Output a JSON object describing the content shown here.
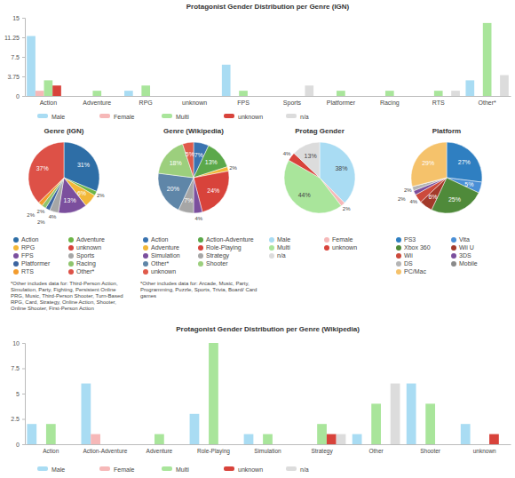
{
  "chart_data": [
    {
      "type": "bar",
      "title": "Protagonist Gender Distribution per Genre (IGN)",
      "categories": [
        "Action",
        "Adventure",
        "RPG",
        "unknown",
        "FPS",
        "Sports",
        "Platformer",
        "Racing",
        "RTS",
        "Other*"
      ],
      "series": [
        {
          "name": "Male",
          "color": "#a9dcf3",
          "values": [
            11.5,
            0,
            1,
            0,
            6,
            0,
            0,
            0,
            0,
            3
          ]
        },
        {
          "name": "Female",
          "color": "#f6b8b8",
          "values": [
            1,
            0,
            0,
            0,
            0,
            0,
            0,
            0,
            0,
            0
          ]
        },
        {
          "name": "Multi",
          "color": "#a9e59b",
          "values": [
            3,
            1,
            2,
            0,
            1,
            0,
            1,
            1,
            1,
            14
          ]
        },
        {
          "name": "unknown",
          "color": "#d8433b",
          "values": [
            2,
            0,
            0,
            0,
            0,
            0,
            0,
            0,
            0,
            0
          ]
        },
        {
          "name": "n/a",
          "color": "#dcdcdc",
          "values": [
            0,
            0,
            0,
            0,
            0,
            2,
            0,
            0,
            1,
            4
          ]
        }
      ],
      "ylim": [
        0,
        15
      ],
      "yticks": [
        0,
        3.75,
        7.5,
        11.25,
        15
      ],
      "grid": false,
      "legend": "bottom"
    },
    {
      "type": "pie",
      "title": "Genre (IGN)",
      "categories": [
        "Action",
        "Adventure",
        "RPG",
        "unknown",
        "FPS",
        "Sports",
        "Platformer",
        "Racing",
        "RTS",
        "Other*"
      ],
      "values": [
        31,
        2,
        6,
        0,
        13,
        4,
        2,
        2,
        2,
        37
      ],
      "value_labels": [
        "31%",
        "2%",
        "6%",
        null,
        "13%",
        "4%",
        "2%",
        "2%",
        "2%",
        "37%"
      ],
      "colors": [
        "#2e6ea6",
        "#6cb547",
        "#f2b738",
        "#d8433b",
        "#7b4f9d",
        "#a6a6a6",
        "#3c64a0",
        "#8fc46c",
        "#f39c2e",
        "#dd5147"
      ],
      "data_labels": true,
      "legend": "bottom",
      "annotation": "*Other includes data for: Third-Person Action, Simulation, Party, Fighting, Persistent Online PRG, Music, Third-Person Shooter, Turn-Based RPG, Card, Strategy, Online Action, Shooter, Online Shooter, First-Person Action"
    },
    {
      "type": "pie",
      "title": "Genre (Wikipedia)",
      "categories": [
        "Action",
        "Action-Adventure",
        "Adventure",
        "Role-Playing",
        "Simulation",
        "Strategy",
        "Other*",
        "Shooter",
        "unknown"
      ],
      "values": [
        7,
        13,
        2,
        24,
        4,
        7,
        20,
        18,
        5
      ],
      "value_labels": [
        "7%",
        "13%",
        "2%",
        "24%",
        "4%",
        "7%",
        "20%",
        "18%",
        "5%"
      ],
      "colors": [
        "#3a73b0",
        "#5ba84a",
        "#f2b738",
        "#d8433b",
        "#7b4f9d",
        "#a6a6a6",
        "#5f86a8",
        "#9ccf7d",
        "#e05a4a"
      ],
      "data_labels": true,
      "legend": "bottom",
      "annotation": "*Other includes data for: Arcade, Music, Party, Programming, Puzzle, Sports, Trivia, Board/ Card games"
    },
    {
      "type": "pie",
      "title": "Protag Gender",
      "categories": [
        "Male",
        "Female",
        "Multi",
        "unknown",
        "n/a"
      ],
      "values": [
        38,
        2,
        44,
        4,
        13
      ],
      "value_labels": [
        "38%",
        "2%",
        "44%",
        "4%",
        "13%"
      ],
      "colors": [
        "#a9dcf3",
        "#f6b8b8",
        "#a9e59b",
        "#d8433b",
        "#dcdcdc"
      ],
      "data_labels": true,
      "legend": "bottom"
    },
    {
      "type": "pie",
      "title": "Platform",
      "categories": [
        "PS3",
        "Vita",
        "Xbox 360",
        "Wii U",
        "Wii",
        "3DS",
        "DS",
        "Mobile",
        "PC/Mac"
      ],
      "values": [
        27,
        5,
        25,
        6,
        4,
        2,
        2,
        0,
        29
      ],
      "value_labels": [
        "27%",
        "5%",
        "25%",
        "6%",
        "4%",
        "2%",
        "2%",
        null,
        "29%"
      ],
      "colors": [
        "#2f7fc1",
        "#4a8fd6",
        "#4f8a3a",
        "#a33a2a",
        "#cc4a3c",
        "#7b4f9d",
        "#b5b5b5",
        "#8a8a8a",
        "#f5c26b"
      ],
      "data_labels": true,
      "legend": "bottom"
    },
    {
      "type": "bar",
      "title": "Protagonist Gender Distribution per Genre (Wikipedia)",
      "categories": [
        "Action",
        "Action-Adventure",
        "Adventure",
        "Role-Playing",
        "Simulation",
        "Strategy",
        "Other",
        "Shooter",
        "unknown"
      ],
      "series": [
        {
          "name": "Male",
          "color": "#a9dcf3",
          "values": [
            2,
            6,
            0,
            3,
            1,
            0,
            1,
            6,
            2
          ]
        },
        {
          "name": "Female",
          "color": "#f6b8b8",
          "values": [
            0,
            1,
            0,
            0,
            0,
            0,
            0,
            0,
            0
          ]
        },
        {
          "name": "Multi",
          "color": "#a9e59b",
          "values": [
            2,
            0,
            1,
            10,
            1,
            2,
            4,
            4,
            0
          ]
        },
        {
          "name": "unknown",
          "color": "#d8433b",
          "values": [
            0,
            0,
            0,
            0,
            0,
            1,
            0,
            0,
            1
          ]
        },
        {
          "name": "n/a",
          "color": "#dcdcdc",
          "values": [
            0,
            0,
            0,
            0,
            0,
            1,
            6,
            0,
            0
          ]
        }
      ],
      "ylim": [
        0,
        10
      ],
      "yticks": [
        0,
        2.5,
        5,
        7.5,
        10
      ],
      "grid": false,
      "legend": "bottom"
    }
  ]
}
